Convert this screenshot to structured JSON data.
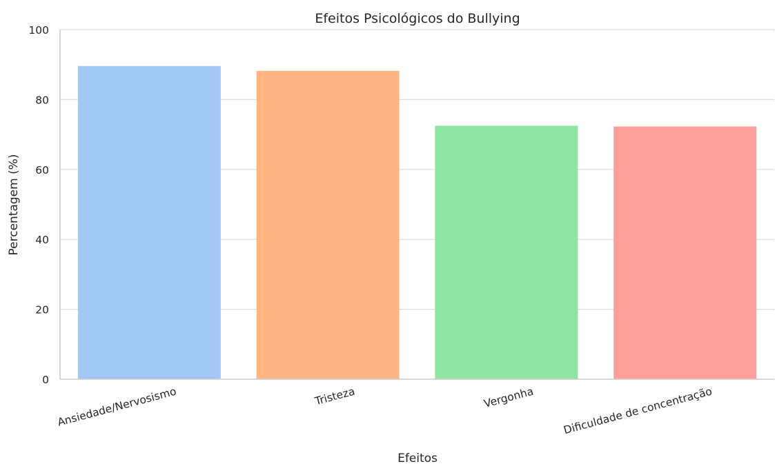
{
  "chart_data": {
    "type": "bar",
    "title": "Efeitos Psicológicos do Bullying",
    "xlabel": "Efeitos",
    "ylabel": "Percentagem (%)",
    "categories": [
      "Ansiedade/Nervosismo",
      "Tristeza",
      "Vergonha",
      "Dificuldade de concentração"
    ],
    "values": [
      89.6,
      88.2,
      72.5,
      72.3
    ],
    "colors": [
      "#a1c9f4",
      "#ffb482",
      "#8de5a1",
      "#ff9f9b"
    ],
    "ylim": [
      0,
      100
    ],
    "yticks": [
      0,
      20,
      40,
      60,
      80,
      100
    ],
    "grid": true,
    "legend": "none"
  }
}
